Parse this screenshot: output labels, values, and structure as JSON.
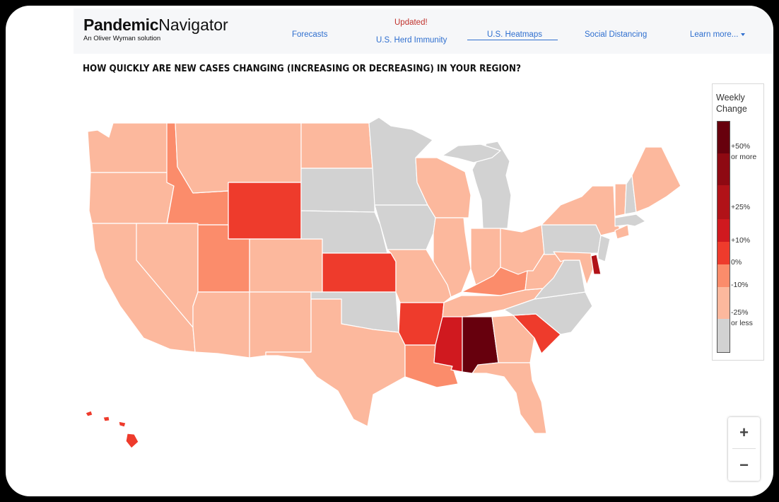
{
  "brand": {
    "name_bold": "Pandemic",
    "name_light": "Navigator",
    "tagline": "An Oliver Wyman solution"
  },
  "nav": {
    "forecasts": "Forecasts",
    "updated_badge": "Updated!",
    "herd_immunity": "U.S. Herd Immunity",
    "heatmaps": "U.S. Heatmaps",
    "social_distancing": "Social Distancing",
    "learn_more": "Learn more...",
    "active": "U.S. Heatmaps"
  },
  "headline": "HOW QUICKLY ARE NEW CASES CHANGING (INCREASING OR DECREASING) IN YOUR REGION?",
  "legend": {
    "title_line1": "Weekly",
    "title_line2": "Change",
    "ticks": {
      "t50": "+50%",
      "t50b": "or more",
      "t25": "+25%",
      "t10": "+10%",
      "t0": "0%",
      "tm10": "-10%",
      "tm25": "-25%",
      "tm25b": "or less"
    }
  },
  "colors": {
    "c50": "#67000d",
    "c40": "#8e0912",
    "c25": "#b11218",
    "c10": "#d0191f",
    "c0": "#ee3b2c",
    "cm10": "#fb8c6b",
    "cm25": "#fcb89d",
    "none": "#d2d2d2"
  },
  "zoom": {
    "in": "+",
    "out": "−"
  },
  "map_data": {
    "states": [
      {
        "abbr": "WA",
        "bucket": "cm25"
      },
      {
        "abbr": "OR",
        "bucket": "cm25"
      },
      {
        "abbr": "CA",
        "bucket": "cm25"
      },
      {
        "abbr": "ID",
        "bucket": "cm10"
      },
      {
        "abbr": "NV",
        "bucket": "cm25"
      },
      {
        "abbr": "MT",
        "bucket": "cm25"
      },
      {
        "abbr": "WY",
        "bucket": "c0"
      },
      {
        "abbr": "UT",
        "bucket": "cm10"
      },
      {
        "abbr": "AZ",
        "bucket": "cm25"
      },
      {
        "abbr": "CO",
        "bucket": "cm25"
      },
      {
        "abbr": "NM",
        "bucket": "cm25"
      },
      {
        "abbr": "ND",
        "bucket": "cm25"
      },
      {
        "abbr": "SD",
        "bucket": "none"
      },
      {
        "abbr": "NE",
        "bucket": "none"
      },
      {
        "abbr": "KS",
        "bucket": "c0"
      },
      {
        "abbr": "OK",
        "bucket": "none"
      },
      {
        "abbr": "TX",
        "bucket": "cm25"
      },
      {
        "abbr": "MN",
        "bucket": "none"
      },
      {
        "abbr": "IA",
        "bucket": "none"
      },
      {
        "abbr": "MO",
        "bucket": "cm25"
      },
      {
        "abbr": "AR",
        "bucket": "c0"
      },
      {
        "abbr": "LA",
        "bucket": "cm10"
      },
      {
        "abbr": "WI",
        "bucket": "cm25"
      },
      {
        "abbr": "IL",
        "bucket": "cm25"
      },
      {
        "abbr": "MI",
        "bucket": "none"
      },
      {
        "abbr": "IN",
        "bucket": "cm25"
      },
      {
        "abbr": "OH",
        "bucket": "cm25"
      },
      {
        "abbr": "KY",
        "bucket": "cm10"
      },
      {
        "abbr": "TN",
        "bucket": "cm25"
      },
      {
        "abbr": "MS",
        "bucket": "c10"
      },
      {
        "abbr": "AL",
        "bucket": "c50"
      },
      {
        "abbr": "GA",
        "bucket": "cm25"
      },
      {
        "abbr": "FL",
        "bucket": "cm25"
      },
      {
        "abbr": "SC",
        "bucket": "c0"
      },
      {
        "abbr": "NC",
        "bucket": "none"
      },
      {
        "abbr": "VA",
        "bucket": "none"
      },
      {
        "abbr": "WV",
        "bucket": "cm25"
      },
      {
        "abbr": "PA",
        "bucket": "none"
      },
      {
        "abbr": "NY",
        "bucket": "cm25"
      },
      {
        "abbr": "VT",
        "bucket": "cm25"
      },
      {
        "abbr": "NH",
        "bucket": "none"
      },
      {
        "abbr": "ME",
        "bucket": "cm25"
      },
      {
        "abbr": "MA",
        "bucket": "none"
      },
      {
        "abbr": "CT",
        "bucket": "cm25"
      },
      {
        "abbr": "NJ",
        "bucket": "none"
      },
      {
        "abbr": "DE",
        "bucket": "c25"
      },
      {
        "abbr": "MD",
        "bucket": "cm25"
      },
      {
        "abbr": "HI",
        "bucket": "c0"
      }
    ]
  }
}
